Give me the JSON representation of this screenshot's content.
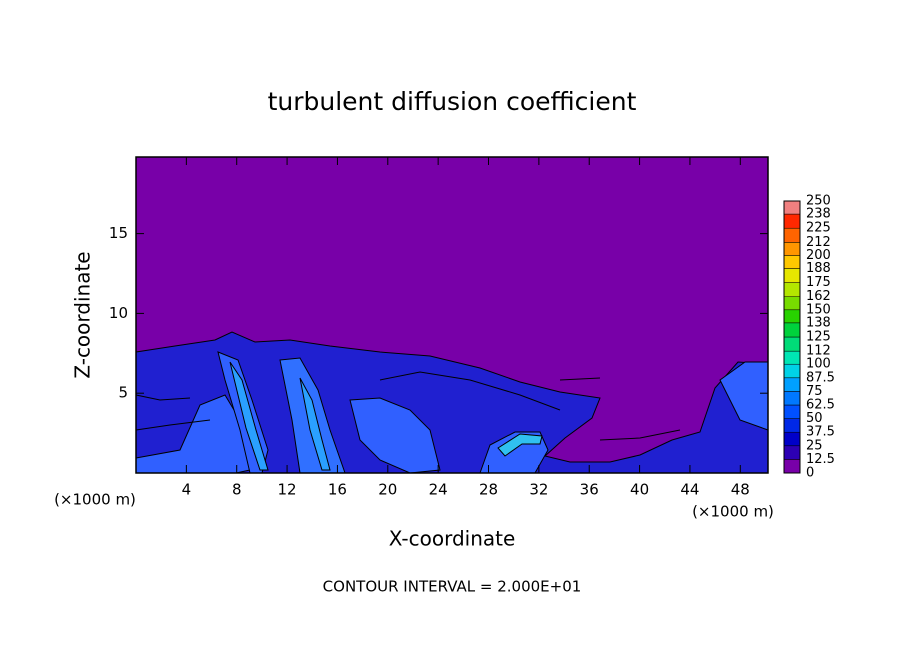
{
  "chart_data": {
    "type": "contour",
    "title": "turbulent diffusion coefficient",
    "x_label": "X-coordinate",
    "y_label": "Z-coordinate",
    "x_unit": "(×1000 m)",
    "y_unit": "(×1000 m)",
    "footer": "CONTOUR INTERVAL = 2.000E+01",
    "xlim": [
      0,
      50.2
    ],
    "ylim": [
      0,
      19.8
    ],
    "xticks": [
      4,
      8,
      12,
      16,
      20,
      24,
      28,
      32,
      36,
      40,
      44,
      48
    ],
    "yticks": [
      5,
      10,
      15
    ],
    "colorbar": {
      "levels": [
        0,
        12.5,
        25,
        37.5,
        50,
        62.5,
        75,
        87.5,
        100,
        112,
        125,
        138,
        150,
        162,
        175,
        188,
        200,
        212,
        225,
        238,
        250
      ],
      "colors": [
        "#7800a8",
        "#2d00b4",
        "#0000c8",
        "#0028e6",
        "#0050ff",
        "#0078ff",
        "#00a0ff",
        "#00d2e6",
        "#00e6b4",
        "#00dc78",
        "#00d23c",
        "#28d200",
        "#78dc00",
        "#b4e600",
        "#e6e600",
        "#ffc800",
        "#ff9600",
        "#ff6400",
        "#ff2800",
        "#f08080"
      ]
    }
  }
}
